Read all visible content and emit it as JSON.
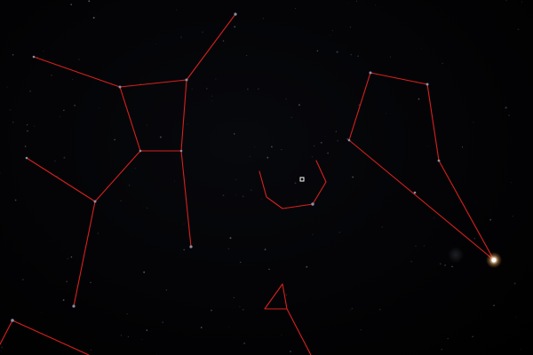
{
  "scene": "night-sky-star-map",
  "colors": {
    "background": "#000000",
    "constellation_line": "#d8201e",
    "star_faint": "#8a8fa6",
    "star_bright": "#ffffff",
    "glow": "#ffd9a6",
    "cursor": "#ffffff"
  },
  "icons": {
    "center_marker": "square-crosshair-icon"
  }
}
